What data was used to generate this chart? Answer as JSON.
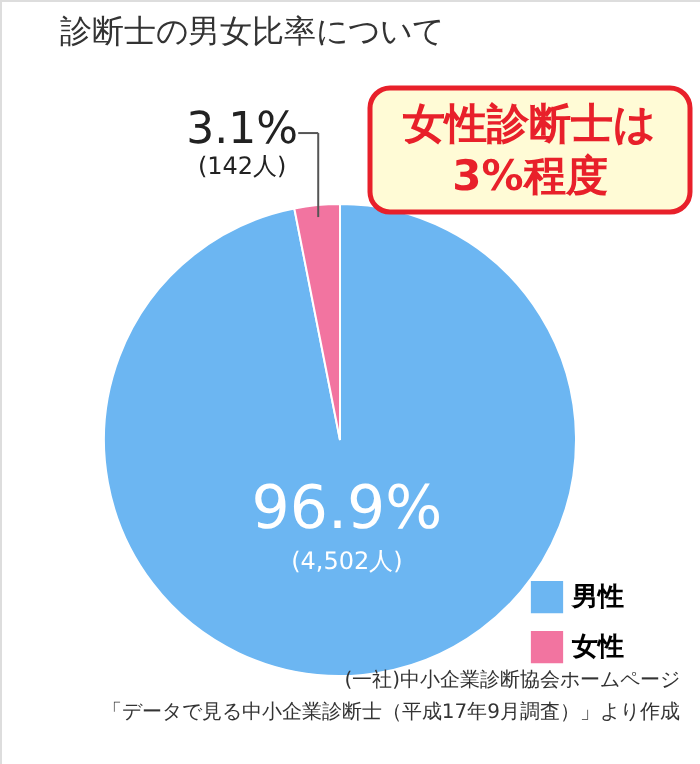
{
  "chart_data": {
    "type": "pie",
    "title": "診断士の男女比率について",
    "categories": [
      "男性",
      "女性"
    ],
    "values": [
      96.9,
      3.1
    ],
    "colors": [
      "#6cb6f2",
      "#f274a0"
    ],
    "value_labels": [
      "96.9%\n(4,502人)",
      "3.1%\n(142人)"
    ],
    "legend": "bottom right",
    "annotations": [
      "女性診断士は\n3%程度",
      "(一社)中小企業診断協会ホームページ",
      "「データで見る中小企業診断士（平成17年9月調査）」より作成"
    ]
  }
}
